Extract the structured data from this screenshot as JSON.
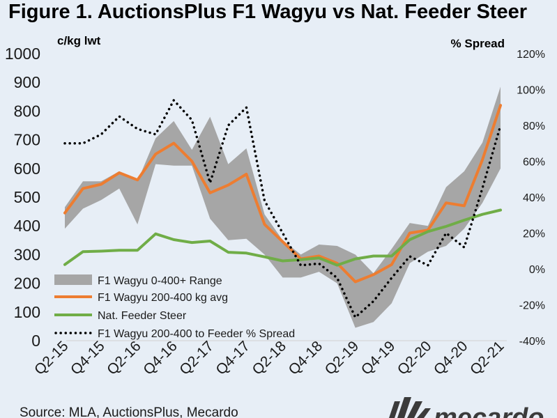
{
  "chart_data": {
    "type": "line",
    "title": "Figure 1. AuctionsPlus F1 Wagyu vs Nat. Feeder Steer",
    "ylabel_left": "c/kg lwt",
    "ylabel_right": "% Spread",
    "ylim_left": [
      0,
      1000
    ],
    "ylim_right": [
      -40,
      120
    ],
    "yticks_left": [
      "0",
      "100",
      "200",
      "300",
      "400",
      "500",
      "600",
      "700",
      "800",
      "900",
      "1000"
    ],
    "yticks_right": [
      "-40%",
      "-20%",
      "0%",
      "20%",
      "40%",
      "60%",
      "80%",
      "100%",
      "120%"
    ],
    "x_tick_labels": [
      "Q2-15",
      "Q4-15",
      "Q2-16",
      "Q4-16",
      "Q2-17",
      "Q4-17",
      "Q2-18",
      "Q4-18",
      "Q2-19",
      "Q4-19",
      "Q2-20",
      "Q4-20",
      "Q2-21"
    ],
    "x": [
      "Q2-15",
      "Q3-15",
      "Q4-15",
      "Q1-16",
      "Q2-16",
      "Q3-16",
      "Q4-16",
      "Q1-17",
      "Q2-17",
      "Q3-17",
      "Q4-17",
      "Q1-18",
      "Q2-18",
      "Q3-18",
      "Q4-18",
      "Q1-19",
      "Q2-19",
      "Q3-19",
      "Q4-19",
      "Q1-20",
      "Q2-20",
      "Q3-20",
      "Q4-20",
      "Q1-21",
      "Q2-21"
    ],
    "series": [
      {
        "name": "F1 Wagyu 0-400+ Range",
        "kind": "range",
        "color": "#a6a6a6",
        "low": [
          390,
          460,
          490,
          530,
          405,
          615,
          610,
          610,
          425,
          350,
          355,
          300,
          220,
          220,
          240,
          200,
          45,
          65,
          130,
          270,
          310,
          330,
          390,
          480,
          600
        ],
        "high": [
          465,
          555,
          555,
          590,
          555,
          705,
          765,
          665,
          780,
          615,
          670,
          440,
          350,
          300,
          335,
          330,
          300,
          235,
          320,
          410,
          400,
          535,
          590,
          690,
          885
        ]
      },
      {
        "name": "F1 Wagyu 200-400 kg avg",
        "kind": "line",
        "color": "#ed7d31",
        "axis": "left",
        "values": [
          445,
          530,
          545,
          585,
          560,
          650,
          688,
          625,
          515,
          542,
          580,
          405,
          345,
          285,
          295,
          270,
          205,
          230,
          265,
          375,
          385,
          480,
          470,
          630,
          820
        ]
      },
      {
        "name": "Nat. Feeder Steer",
        "kind": "line",
        "color": "#70ad47",
        "axis": "left",
        "values": [
          265,
          310,
          312,
          315,
          315,
          372,
          352,
          342,
          347,
          308,
          305,
          292,
          278,
          282,
          288,
          263,
          285,
          295,
          295,
          352,
          380,
          398,
          420,
          440,
          455
        ]
      },
      {
        "name": "F1 Wagyu 200-400 to Feeder % Spread",
        "kind": "dotted",
        "color": "#000000",
        "axis": "right",
        "values": [
          70,
          70,
          75,
          85,
          78,
          75,
          94,
          83,
          48,
          80,
          90,
          38,
          20,
          2,
          3,
          -5,
          -27,
          -18,
          -5,
          7,
          2,
          20,
          12,
          45,
          80
        ]
      }
    ],
    "legend_position": "lower-left",
    "grid": false
  },
  "footer": {
    "source": "Source: MLA, AuctionsPlus, Mecardo",
    "logo_text": "mecardo",
    "logo_color": "#3b3b3b"
  },
  "background_color": "#e7eef6"
}
